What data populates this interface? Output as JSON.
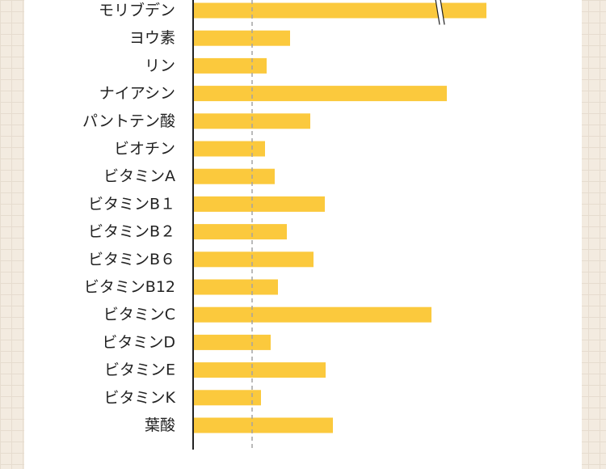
{
  "chart_data": {
    "type": "bar",
    "orientation": "horizontal",
    "title": "",
    "xlabel": "",
    "ylabel": "",
    "categories": [
      "モリブデン",
      "ヨウ素",
      "リン",
      "ナイアシン",
      "パントテン酸",
      "ビオチン",
      "ビタミンA",
      "ビタミンB１",
      "ビタミンB２",
      "ビタミンB６",
      "ビタミンB12",
      "ビタミンC",
      "ビタミンD",
      "ビタミンE",
      "ビタミンK",
      "葉酸"
    ],
    "values": [
      362,
      119,
      90,
      313,
      144,
      88,
      100,
      162,
      115,
      148,
      104,
      294,
      95,
      163,
      83,
      172
    ],
    "axis_break_on": "モリブデン",
    "reference_line": 73,
    "xlim": [
      0,
      480
    ],
    "grid": false,
    "legend": "none",
    "colors": {
      "bar": "#fbc93d",
      "axis": "#222222",
      "reference": "#a3a3a3",
      "panel": "#ffffff",
      "background": "#f3ebe0"
    }
  }
}
